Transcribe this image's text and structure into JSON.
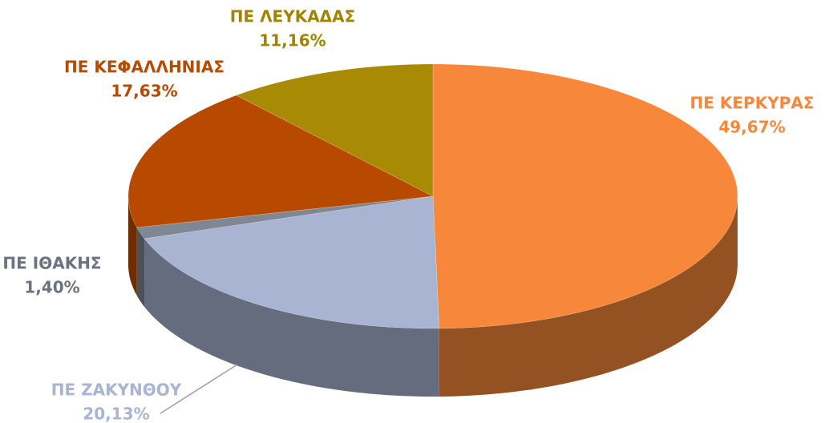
{
  "chart_data": {
    "type": "pie",
    "categories": [
      "ΠΕ ΚΕΡΚΥΡΑΣ",
      "ΠΕ ΖΑΚΥΝΘΟΥ",
      "ΠΕ ΙΘΑΚΗΣ",
      "ΠΕ ΚΕΦΑΛΛΗΝΙΑΣ",
      "ΠΕ ΛΕΥΚΑΔΑΣ"
    ],
    "values": [
      49.67,
      20.13,
      1.4,
      17.63,
      11.16
    ],
    "value_labels": [
      "49,67%",
      "20,13%",
      "1,40%",
      "17,63%",
      "11,16%"
    ],
    "colors": [
      "#f7883b",
      "#a9b4d2",
      "#7f8792",
      "#b84a00",
      "#a88a05"
    ]
  }
}
